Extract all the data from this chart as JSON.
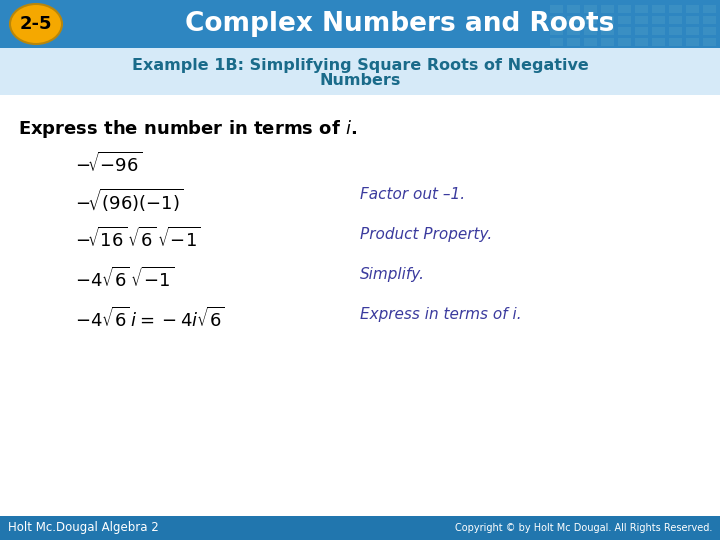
{
  "header_bg_color": "#2E86C1",
  "header_text": "Complex Numbers and Roots",
  "header_text_color": "#FFFFFF",
  "badge_text": "2-5",
  "badge_bg_color": "#F5A800",
  "badge_text_color": "#000000",
  "body_bg_color": "#FFFFFF",
  "example_title_line1": "Example 1B: Simplifying Square Roots of Negative",
  "example_title_line2": "Numbers",
  "example_title_color": "#1A6B8A",
  "instruction_color": "#000000",
  "footer_bg_color": "#2176AE",
  "footer_left": "Holt Mc.Dougal Algebra 2",
  "footer_right": "Copyright © by Holt Mc Dougal. All Rights Reserved.",
  "footer_text_color": "#FFFFFF",
  "annotation_color": "#3B3B9E",
  "step_color": "#000000",
  "grid_color": "#4A9CC7",
  "subheader_bg": "#D6EAF8"
}
